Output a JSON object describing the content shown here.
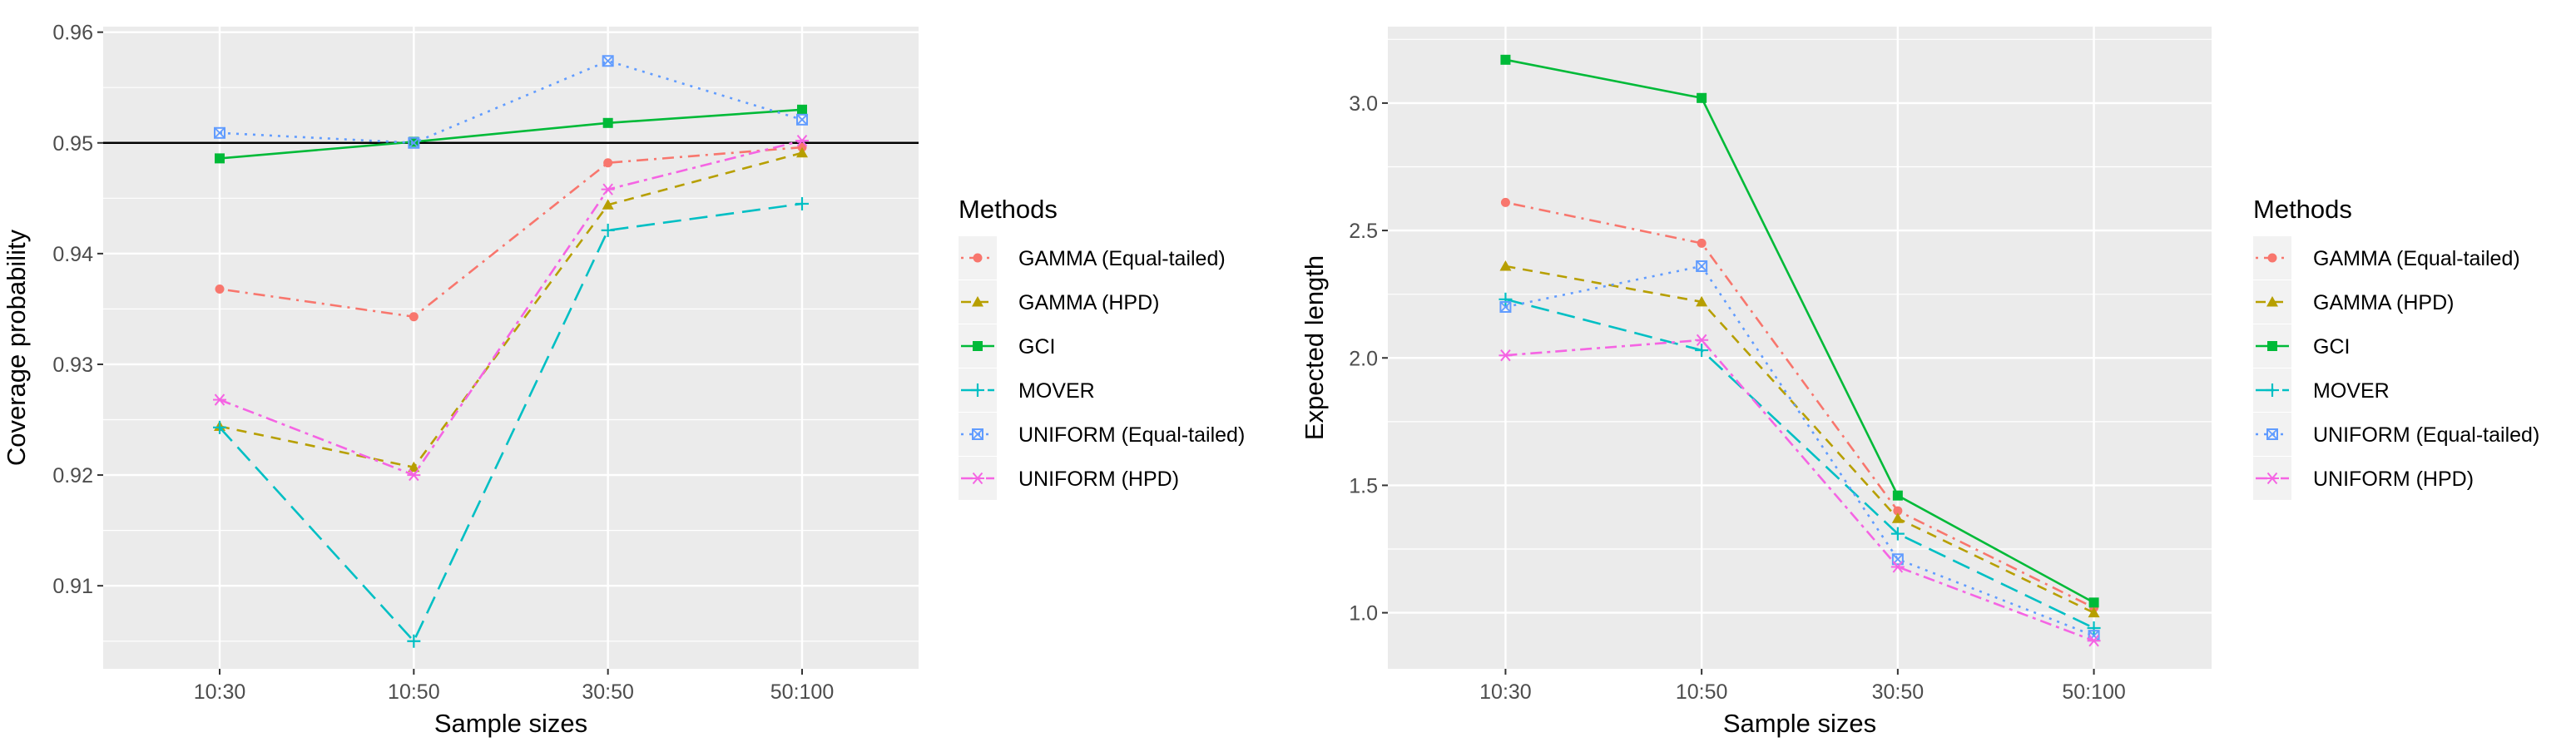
{
  "chart_data": [
    {
      "type": "line",
      "xlabel": "Sample sizes",
      "ylabel": "Coverage probability",
      "categories": [
        "10:30",
        "10:50",
        "30:50",
        "50:100"
      ],
      "ylim": [
        0.9025,
        0.9605
      ],
      "yticks": [
        "0.91",
        "0.92",
        "0.93",
        "0.94",
        "0.95",
        "0.96"
      ],
      "ytick_values": [
        0.91,
        0.92,
        0.93,
        0.94,
        0.95,
        0.96
      ],
      "reference_line": 0.95,
      "grid": true,
      "legend_position": "right",
      "series": [
        {
          "name": "GAMMA (Equal-tailed)",
          "values": [
            0.9368,
            0.9343,
            0.9482,
            0.9496
          ]
        },
        {
          "name": "GAMMA (HPD)",
          "values": [
            0.9244,
            0.9207,
            0.9444,
            0.9491
          ]
        },
        {
          "name": "GCI",
          "values": [
            0.9486,
            0.9501,
            0.9518,
            0.953
          ]
        },
        {
          "name": "MOVER",
          "values": [
            0.9243,
            0.905,
            0.9421,
            0.9445
          ]
        },
        {
          "name": "UNIFORM (Equal-tailed)",
          "values": [
            0.9509,
            0.95,
            0.9574,
            0.9521
          ]
        },
        {
          "name": "UNIFORM (HPD)",
          "values": [
            0.9268,
            0.92,
            0.9458,
            0.9502
          ]
        }
      ]
    },
    {
      "type": "line",
      "xlabel": "Sample sizes",
      "ylabel": "Expected length",
      "categories": [
        "10:30",
        "10:50",
        "30:50",
        "50:100"
      ],
      "ylim": [
        0.78,
        3.3
      ],
      "yticks": [
        "1.0",
        "1.5",
        "2.0",
        "2.5",
        "3.0"
      ],
      "ytick_values": [
        1.0,
        1.5,
        2.0,
        2.5,
        3.0
      ],
      "grid": true,
      "legend_position": "right",
      "series": [
        {
          "name": "GAMMA (Equal-tailed)",
          "values": [
            2.61,
            2.45,
            1.4,
            1.02
          ]
        },
        {
          "name": "GAMMA (HPD)",
          "values": [
            2.36,
            2.22,
            1.37,
            1.0
          ]
        },
        {
          "name": "GCI",
          "values": [
            3.17,
            3.02,
            1.46,
            1.04
          ]
        },
        {
          "name": "MOVER",
          "values": [
            2.23,
            2.03,
            1.31,
            0.94
          ]
        },
        {
          "name": "UNIFORM (Equal-tailed)",
          "values": [
            2.2,
            2.36,
            1.21,
            0.91
          ]
        },
        {
          "name": "UNIFORM (HPD)",
          "values": [
            2.01,
            2.07,
            1.18,
            0.89
          ]
        }
      ]
    }
  ],
  "legend": {
    "title": "Methods",
    "items": [
      {
        "label": "GAMMA (Equal-tailed)",
        "color": "#F8766D",
        "shape": "circle",
        "dash": "dotdash"
      },
      {
        "label": "GAMMA (HPD)",
        "color": "#B79F00",
        "shape": "triangle",
        "dash": "dashed"
      },
      {
        "label": "GCI",
        "color": "#00BA38",
        "shape": "square",
        "dash": "solid"
      },
      {
        "label": "MOVER",
        "color": "#00BFC4",
        "shape": "plus",
        "dash": "longdash"
      },
      {
        "label": "UNIFORM (Equal-tailed)",
        "color": "#619CFF",
        "shape": "square-cross",
        "dash": "dotted"
      },
      {
        "label": "UNIFORM (HPD)",
        "color": "#F564E3",
        "shape": "asterisk",
        "dash": "twodash"
      }
    ]
  }
}
